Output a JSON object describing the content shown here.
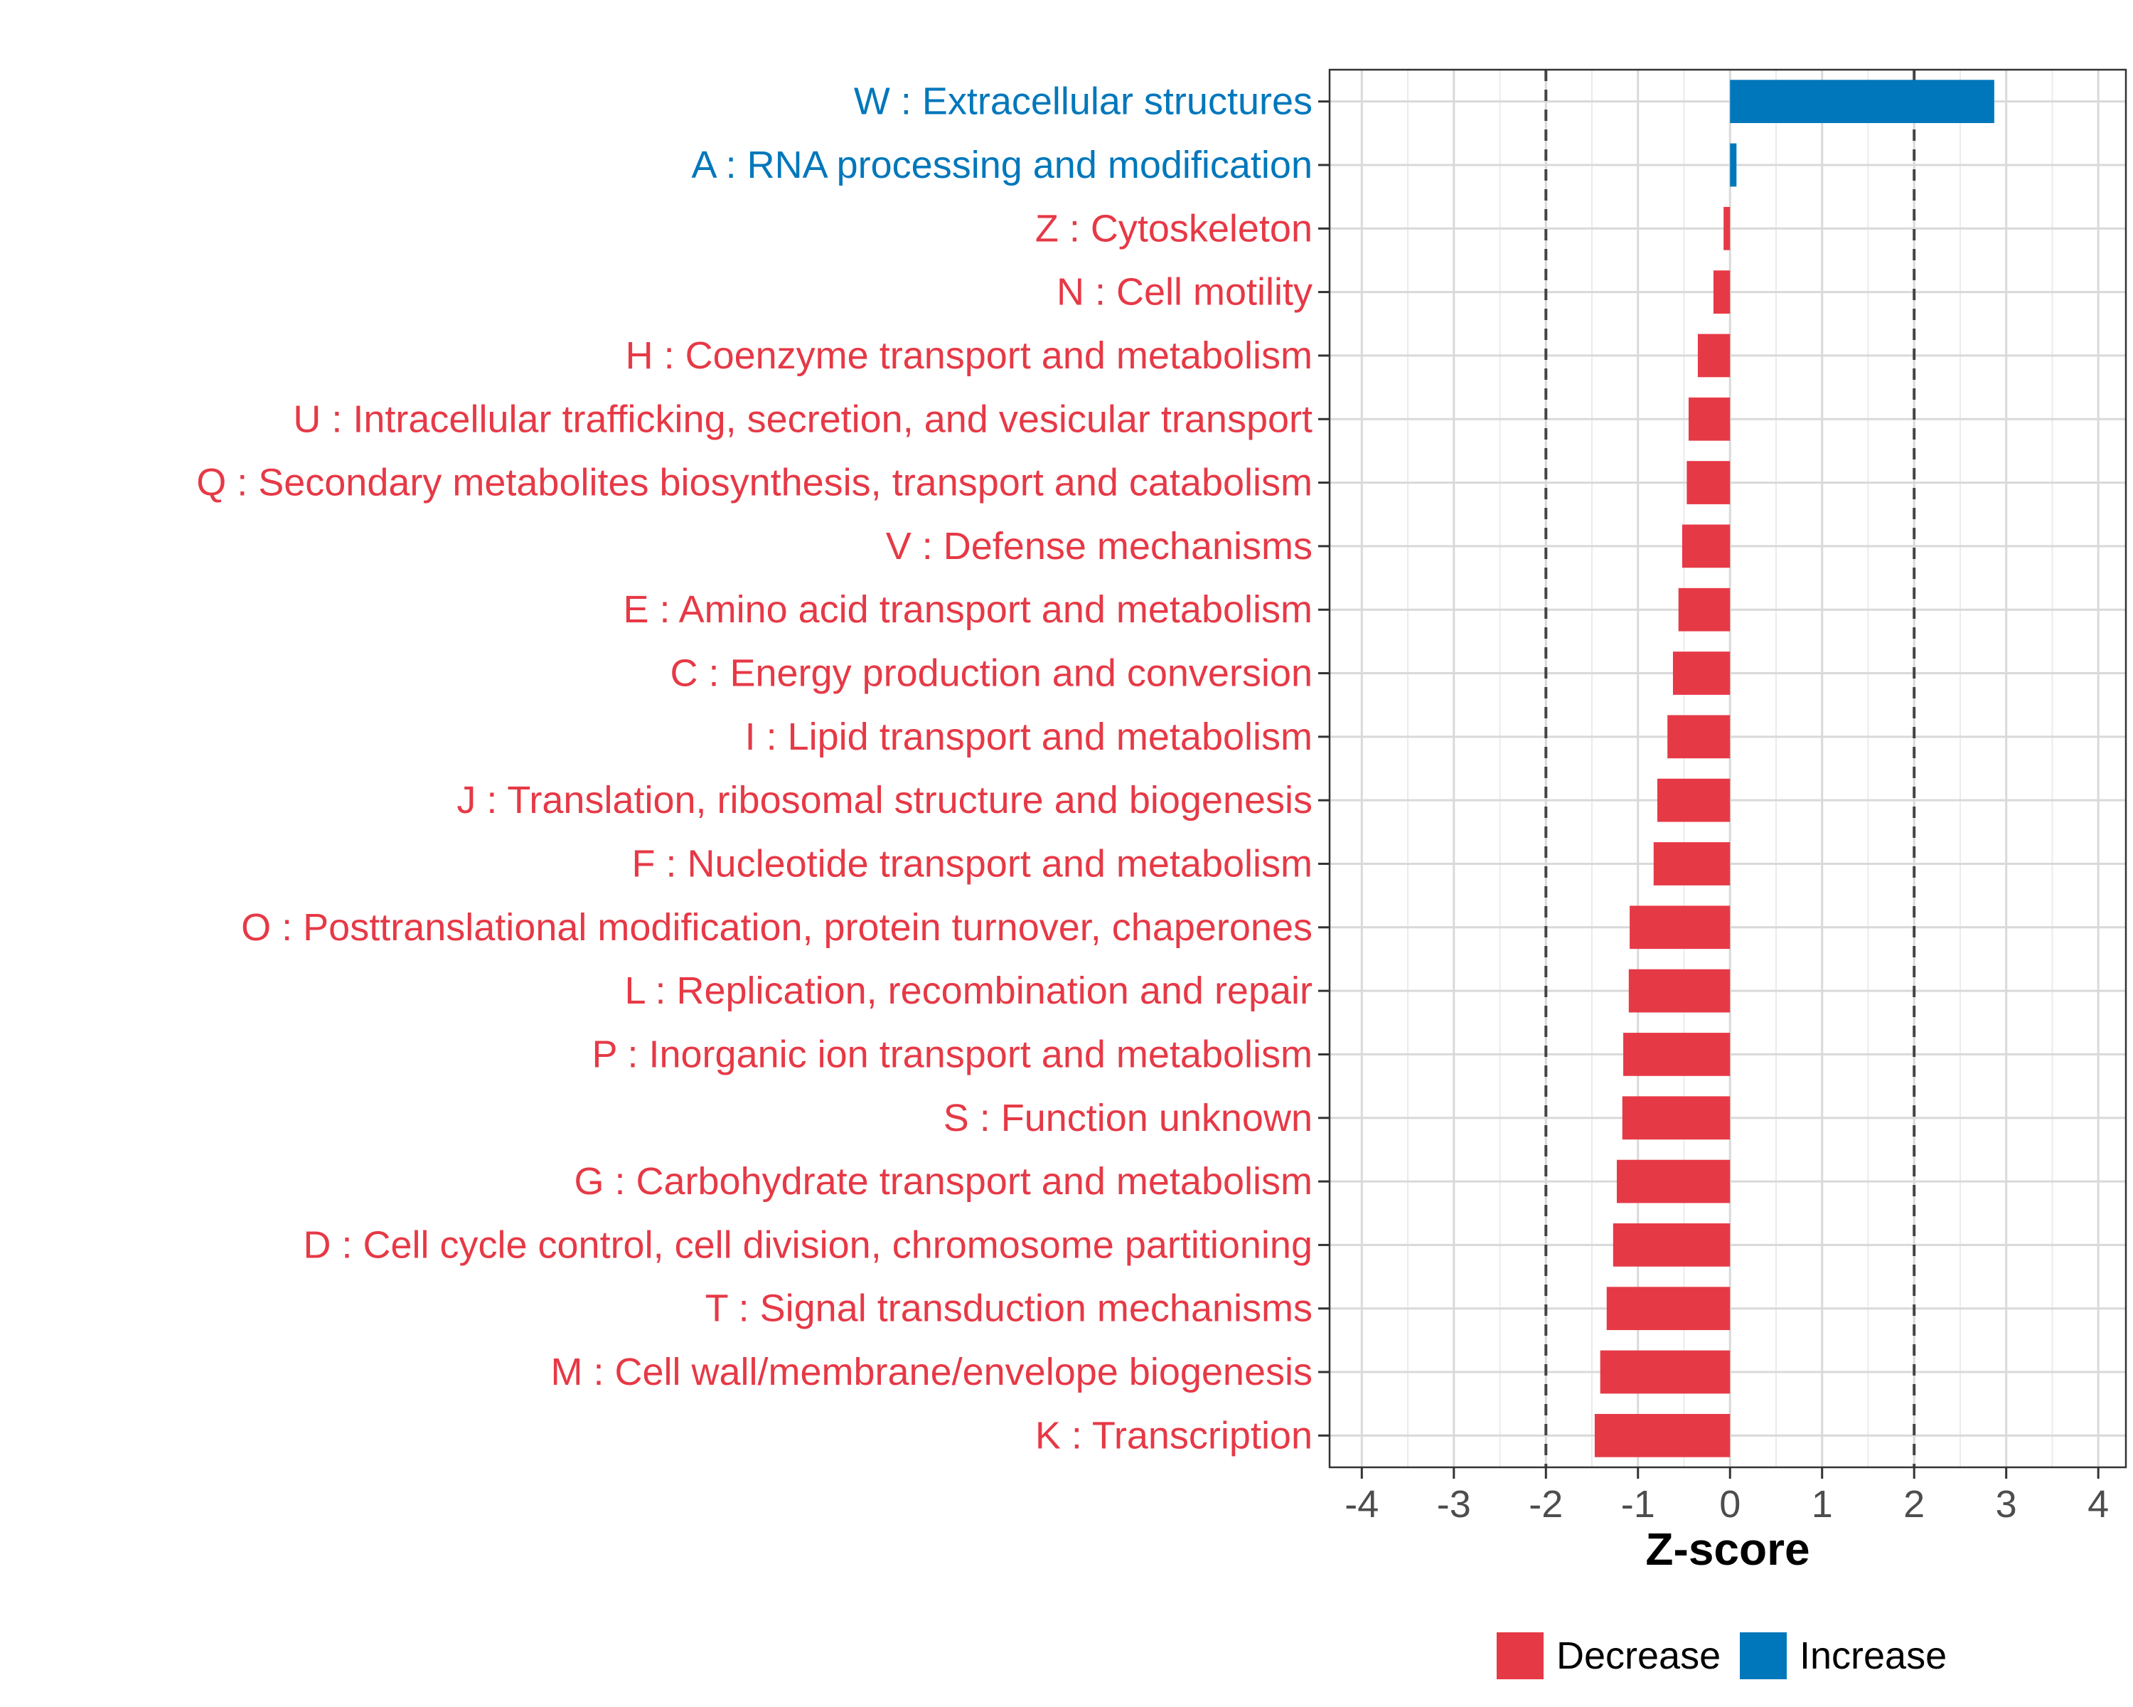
{
  "chart_data": {
    "type": "bar",
    "orientation": "horizontal",
    "title": "",
    "xlabel": "Z-score",
    "ylabel": "",
    "xlim": [
      -4.35,
      4.3
    ],
    "xticks": [
      -4,
      -3,
      -2,
      -1,
      0,
      1,
      2,
      3,
      4
    ],
    "xtick_labels": [
      "-4",
      "-3",
      "-2",
      "-1",
      "0",
      "1",
      "2",
      "3",
      "4"
    ],
    "reference_lines": [
      -2,
      2
    ],
    "grid": true,
    "colors": {
      "Decrease": "#E63946",
      "Increase": "#0077BB"
    },
    "categories": [
      "W : Extracellular structures",
      "A : RNA processing and modification",
      "Z : Cytoskeleton",
      "N : Cell motility",
      "H : Coenzyme transport and metabolism",
      "U : Intracellular trafficking, secretion, and vesicular transport",
      "Q : Secondary metabolites biosynthesis, transport and catabolism",
      "V : Defense mechanisms",
      "E : Amino acid transport and metabolism",
      "C : Energy production and conversion",
      "I : Lipid transport and metabolism",
      "J : Translation, ribosomal structure and biogenesis",
      "F : Nucleotide transport and metabolism",
      "O : Posttranslational modification, protein turnover, chaperones",
      "L : Replication, recombination and repair",
      "P : Inorganic ion transport and metabolism",
      "S : Function unknown",
      "G : Carbohydrate transport and metabolism",
      "D : Cell cycle control, cell division, chromosome partitioning",
      "T : Signal transduction mechanisms",
      "M : Cell wall/membrane/envelope biogenesis",
      "K : Transcription"
    ],
    "values": [
      2.87,
      0.07,
      -0.07,
      -0.18,
      -0.35,
      -0.45,
      -0.47,
      -0.52,
      -0.56,
      -0.62,
      -0.68,
      -0.79,
      -0.83,
      -1.09,
      -1.1,
      -1.16,
      -1.17,
      -1.23,
      -1.27,
      -1.34,
      -1.41,
      -1.47
    ],
    "directions": [
      "Increase",
      "Increase",
      "Decrease",
      "Decrease",
      "Decrease",
      "Decrease",
      "Decrease",
      "Decrease",
      "Decrease",
      "Decrease",
      "Decrease",
      "Decrease",
      "Decrease",
      "Decrease",
      "Decrease",
      "Decrease",
      "Decrease",
      "Decrease",
      "Decrease",
      "Decrease",
      "Decrease",
      "Decrease"
    ],
    "legend": {
      "position": "bottom",
      "entries": [
        {
          "label": "Decrease",
          "color": "#E63946"
        },
        {
          "label": "Increase",
          "color": "#0077BB"
        }
      ]
    }
  }
}
